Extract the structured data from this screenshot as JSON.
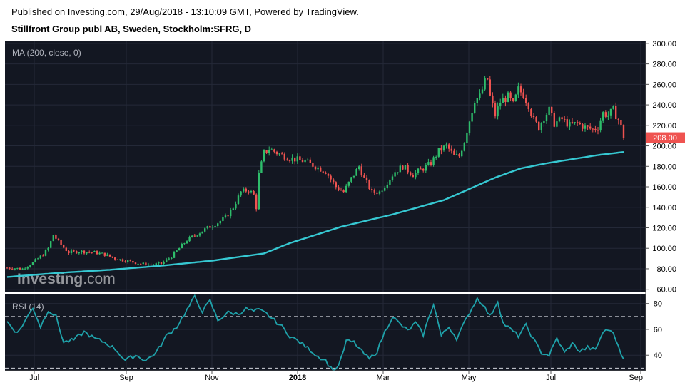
{
  "header": {
    "published": "Published on Investing.com, 29/Aug/2018 - 13:10:09 GMT, Powered by TradingView.",
    "title": "Stillfront Group publ AB, Sweden, Stockholm:SFRG, D"
  },
  "watermark": {
    "brand": "Investing",
    "suffix": ".com"
  },
  "colors": {
    "background": "#131722",
    "grid": "#242938",
    "up": "#26a69a",
    "up_candle": "#2ebd6b",
    "down": "#ef5350",
    "ma": "#36c8d2",
    "rsi": "#1fa2aa",
    "price_badge": "#ef5350"
  },
  "chart_data": [
    {
      "type": "candlestick",
      "indicator_label": "MA (200, close, 0)",
      "y_ticks": [
        60,
        80,
        100,
        120,
        140,
        160,
        180,
        200,
        220,
        240,
        260,
        280,
        300
      ],
      "y_tick_labels": [
        "60.00",
        "80.00",
        "100.00",
        "120.00",
        "140.00",
        "160.00",
        "180.00",
        "200.00",
        "220.00",
        "240.00",
        "260.00",
        "280.00",
        "300.00"
      ],
      "ylim": [
        57,
        302
      ],
      "last_price": 208,
      "last_price_label": "208.00",
      "x_ticks": [
        "Jul",
        "Sep",
        "Nov",
        "2018",
        "Mar",
        "May",
        "Jul",
        "Sep"
      ],
      "price_path": [
        [
          0,
          81
        ],
        [
          6,
          80
        ],
        [
          10,
          86
        ],
        [
          14,
          94
        ],
        [
          16,
          100
        ],
        [
          18,
          113
        ],
        [
          21,
          103
        ],
        [
          24,
          96
        ],
        [
          28,
          97
        ],
        [
          34,
          96
        ],
        [
          38,
          94
        ],
        [
          42,
          90
        ],
        [
          46,
          88
        ],
        [
          52,
          85
        ],
        [
          56,
          84
        ],
        [
          60,
          85
        ],
        [
          64,
          92
        ],
        [
          67,
          100
        ],
        [
          70,
          108
        ],
        [
          74,
          114
        ],
        [
          78,
          120
        ],
        [
          82,
          125
        ],
        [
          85,
          130
        ],
        [
          88,
          140
        ],
        [
          91,
          155
        ],
        [
          94,
          157
        ],
        [
          96,
          152
        ],
        [
          97,
          140
        ],
        [
          98,
          172
        ],
        [
          100,
          193
        ],
        [
          102,
          197
        ],
        [
          106,
          192
        ],
        [
          110,
          188
        ],
        [
          116,
          185
        ],
        [
          120,
          180
        ],
        [
          124,
          175
        ],
        [
          128,
          160
        ],
        [
          131,
          155
        ],
        [
          134,
          168
        ],
        [
          137,
          180
        ],
        [
          139,
          168
        ],
        [
          142,
          155
        ],
        [
          145,
          155
        ],
        [
          148,
          165
        ],
        [
          151,
          175
        ],
        [
          154,
          180
        ],
        [
          158,
          172
        ],
        [
          162,
          178
        ],
        [
          165,
          183
        ],
        [
          168,
          195
        ],
        [
          171,
          200
        ],
        [
          174,
          190
        ],
        [
          176,
          190
        ],
        [
          178,
          205
        ],
        [
          180,
          225
        ],
        [
          182,
          245
        ],
        [
          184,
          248
        ],
        [
          186,
          262
        ],
        [
          187,
          265
        ],
        [
          188,
          248
        ],
        [
          190,
          230
        ],
        [
          192,
          243
        ],
        [
          195,
          248
        ],
        [
          197,
          240
        ],
        [
          199,
          255
        ],
        [
          201,
          250
        ],
        [
          203,
          240
        ],
        [
          205,
          225
        ],
        [
          207,
          218
        ],
        [
          209,
          228
        ],
        [
          211,
          235
        ],
        [
          213,
          222
        ],
        [
          216,
          226
        ],
        [
          219,
          220
        ],
        [
          222,
          222
        ],
        [
          225,
          218
        ],
        [
          228,
          216
        ],
        [
          230,
          218
        ],
        [
          232,
          232
        ],
        [
          234,
          230
        ],
        [
          236,
          235
        ],
        [
          238,
          225
        ],
        [
          239,
          218
        ],
        [
          240,
          208
        ]
      ],
      "ma_path": [
        [
          0,
          72
        ],
        [
          20,
          76
        ],
        [
          40,
          79
        ],
        [
          60,
          83
        ],
        [
          80,
          88
        ],
        [
          100,
          95
        ],
        [
          110,
          105
        ],
        [
          120,
          113
        ],
        [
          130,
          121
        ],
        [
          140,
          127
        ],
        [
          150,
          133
        ],
        [
          160,
          140
        ],
        [
          170,
          147
        ],
        [
          180,
          158
        ],
        [
          190,
          169
        ],
        [
          200,
          178
        ],
        [
          210,
          183
        ],
        [
          220,
          187
        ],
        [
          230,
          191
        ],
        [
          240,
          194
        ]
      ]
    },
    {
      "type": "line",
      "indicator_label": "RSI (14)",
      "y_ticks": [
        40,
        60,
        80
      ],
      "y_tick_labels": [
        "40",
        "60",
        "80"
      ],
      "ylim": [
        28,
        87
      ],
      "reference_lines": [
        70,
        30
      ],
      "x_ticks": [
        "Jul",
        "Sep",
        "Nov",
        "2018",
        "Mar",
        "May",
        "Jul",
        "Sep"
      ],
      "rsi_path": [
        [
          0,
          66
        ],
        [
          4,
          57
        ],
        [
          8,
          70
        ],
        [
          10,
          77
        ],
        [
          13,
          62
        ],
        [
          16,
          75
        ],
        [
          19,
          70
        ],
        [
          22,
          50
        ],
        [
          26,
          52
        ],
        [
          30,
          58
        ],
        [
          34,
          53
        ],
        [
          38,
          50
        ],
        [
          42,
          45
        ],
        [
          46,
          36
        ],
        [
          50,
          40
        ],
        [
          54,
          36
        ],
        [
          58,
          42
        ],
        [
          62,
          55
        ],
        [
          66,
          62
        ],
        [
          70,
          75
        ],
        [
          73,
          85
        ],
        [
          76,
          74
        ],
        [
          79,
          82
        ],
        [
          82,
          67
        ],
        [
          86,
          73
        ],
        [
          90,
          72
        ],
        [
          93,
          76
        ],
        [
          96,
          74
        ],
        [
          98,
          75
        ],
        [
          101,
          72
        ],
        [
          104,
          67
        ],
        [
          107,
          62
        ],
        [
          110,
          55
        ],
        [
          114,
          50
        ],
        [
          118,
          44
        ],
        [
          121,
          39
        ],
        [
          124,
          36
        ],
        [
          126,
          30
        ],
        [
          128,
          29
        ],
        [
          130,
          37
        ],
        [
          132,
          51
        ],
        [
          135,
          50
        ],
        [
          138,
          43
        ],
        [
          141,
          37
        ],
        [
          144,
          43
        ],
        [
          147,
          58
        ],
        [
          150,
          70
        ],
        [
          153,
          64
        ],
        [
          156,
          59
        ],
        [
          159,
          65
        ],
        [
          162,
          56
        ],
        [
          164,
          68
        ],
        [
          166,
          80
        ],
        [
          169,
          55
        ],
        [
          172,
          62
        ],
        [
          175,
          53
        ],
        [
          177,
          61
        ],
        [
          180,
          73
        ],
        [
          183,
          84
        ],
        [
          185,
          80
        ],
        [
          188,
          70
        ],
        [
          191,
          82
        ],
        [
          193,
          65
        ],
        [
          196,
          60
        ],
        [
          199,
          55
        ],
        [
          202,
          63
        ],
        [
          205,
          52
        ],
        [
          208,
          42
        ],
        [
          211,
          40
        ],
        [
          214,
          53
        ],
        [
          217,
          42
        ],
        [
          220,
          49
        ],
        [
          223,
          43
        ],
        [
          226,
          46
        ],
        [
          229,
          44
        ],
        [
          232,
          58
        ],
        [
          235,
          60
        ],
        [
          237,
          52
        ],
        [
          239,
          42
        ],
        [
          240,
          38
        ]
      ]
    }
  ]
}
